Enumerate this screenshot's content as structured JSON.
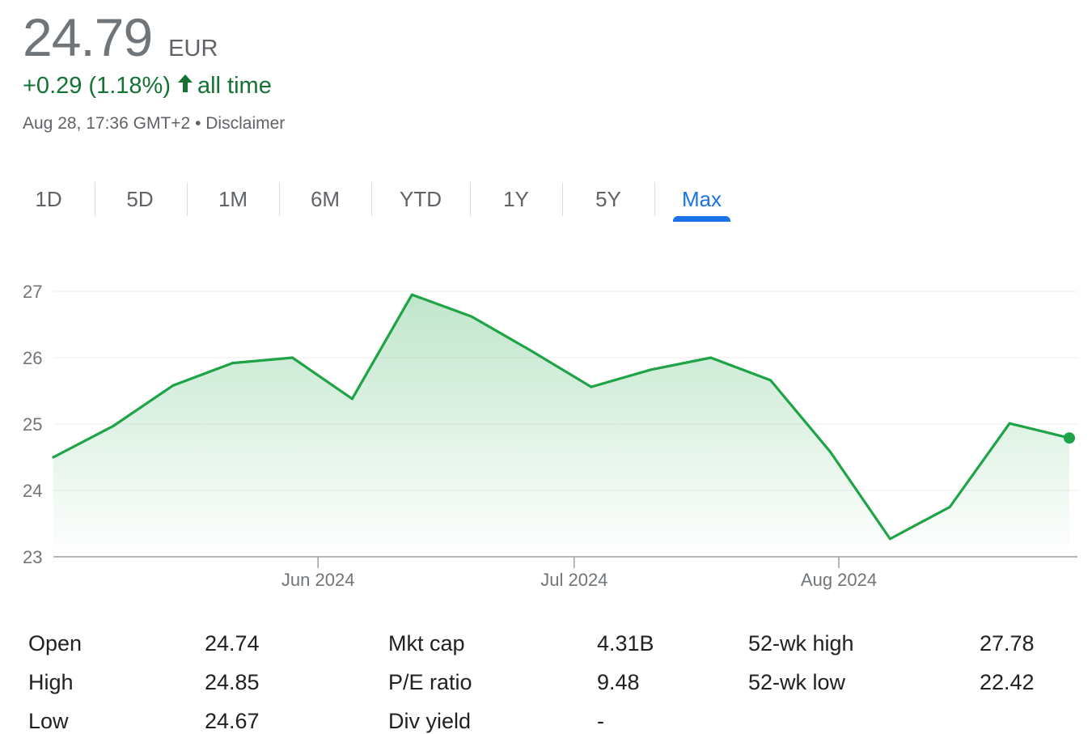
{
  "quote": {
    "price": "24.79",
    "currency": "EUR",
    "change_text": "+0.29 (1.18%)",
    "change_period": "all time",
    "timestamp": "Aug 28, 17:36 GMT+2",
    "separator": "•",
    "disclaimer": "Disclaimer"
  },
  "tabs": [
    {
      "label": "1D"
    },
    {
      "label": "5D"
    },
    {
      "label": "1M"
    },
    {
      "label": "6M"
    },
    {
      "label": "YTD"
    },
    {
      "label": "1Y"
    },
    {
      "label": "5Y"
    },
    {
      "label": "Max",
      "active": true
    }
  ],
  "colors": {
    "line": "#1ea446",
    "positive": "#137333",
    "active_tab": "#1a73e8"
  },
  "chart_data": {
    "type": "area",
    "x_dates": [
      "2024-05-01",
      "2024-05-08",
      "2024-05-15",
      "2024-05-22",
      "2024-05-29",
      "2024-06-05",
      "2024-06-12",
      "2024-06-19",
      "2024-06-26",
      "2024-07-03",
      "2024-07-10",
      "2024-07-17",
      "2024-07-24",
      "2024-07-31",
      "2024-08-07",
      "2024-08-14",
      "2024-08-21",
      "2024-08-28"
    ],
    "series": [
      {
        "values": [
          24.5,
          24.97,
          25.58,
          25.92,
          26.0,
          25.38,
          26.95,
          26.62,
          26.1,
          25.56,
          25.82,
          26.0,
          25.66,
          24.58,
          23.27,
          23.75,
          25.01,
          24.79
        ]
      }
    ],
    "x_ticks": [
      {
        "label": "Jun 2024",
        "date": "2024-06-01"
      },
      {
        "label": "Jul 2024",
        "date": "2024-07-01"
      },
      {
        "label": "Aug 2024",
        "date": "2024-08-01"
      }
    ],
    "y_ticks": [
      "27",
      "26",
      "25",
      "24",
      "23"
    ],
    "ylim": [
      23,
      27
    ],
    "grid": true,
    "last_point_marker": true
  },
  "stats": [
    {
      "label": "Open",
      "value": "24.74"
    },
    {
      "label": "High",
      "value": "24.85"
    },
    {
      "label": "Low",
      "value": "24.67"
    },
    {
      "label": "Mkt cap",
      "value": "4.31B"
    },
    {
      "label": "P/E ratio",
      "value": "9.48"
    },
    {
      "label": "Div yield",
      "value": "-"
    },
    {
      "label": "52-wk high",
      "value": "27.78"
    },
    {
      "label": "52-wk low",
      "value": "22.42"
    }
  ]
}
